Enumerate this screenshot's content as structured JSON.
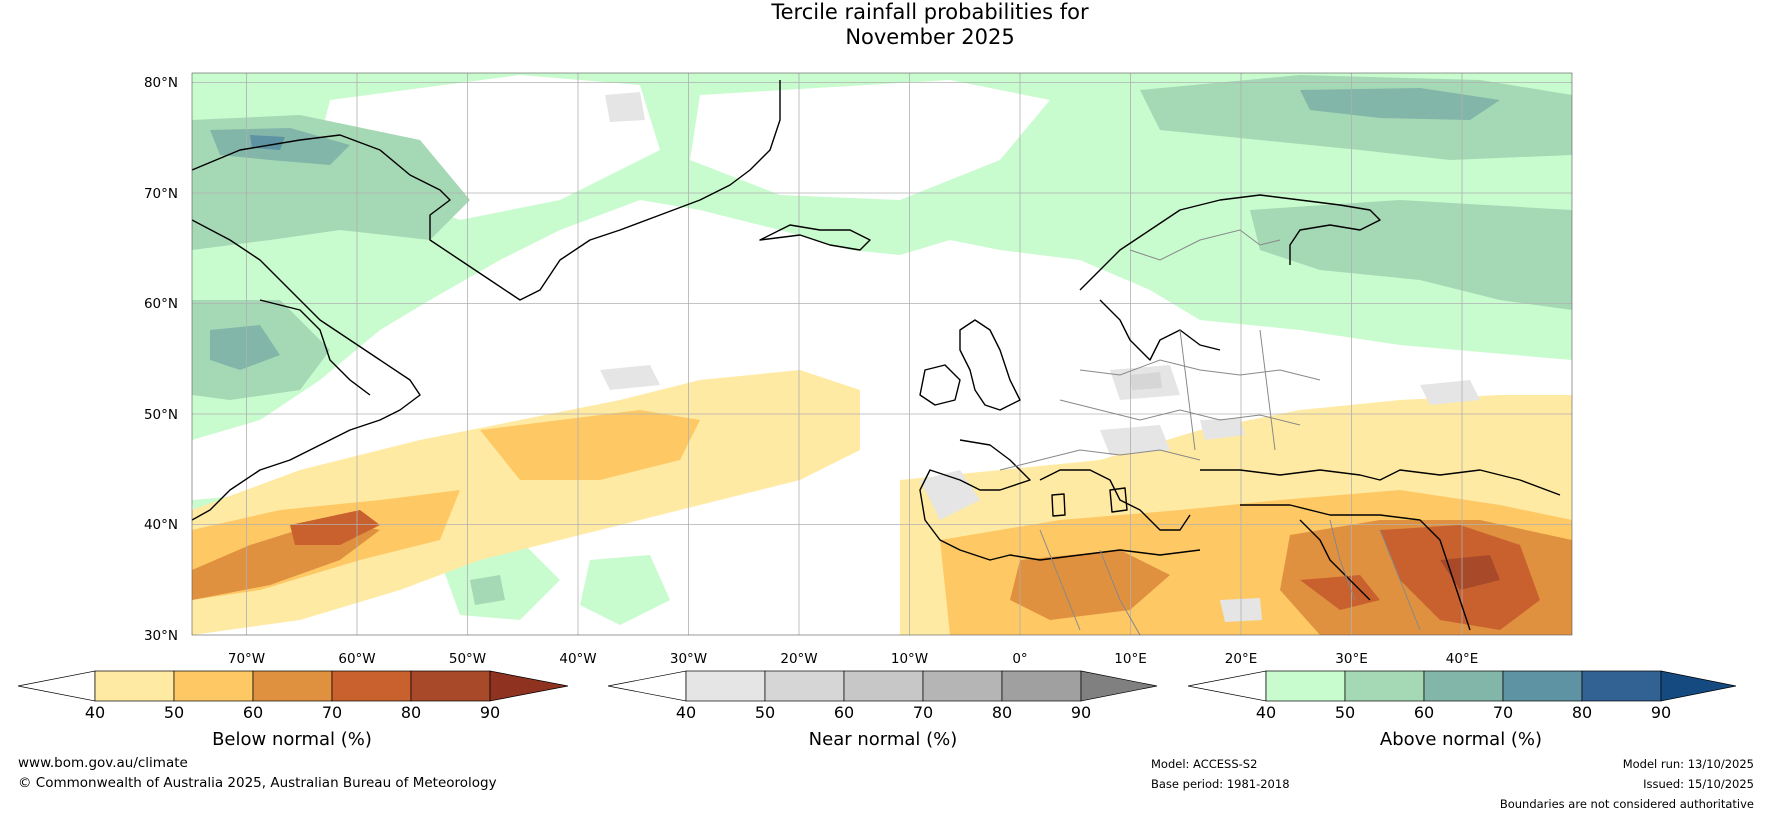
{
  "title": {
    "line1": "Tercile rainfall probabilities for",
    "line2": "November 2025"
  },
  "map": {
    "lat_labels": [
      "80°N",
      "70°N",
      "60°N",
      "50°N",
      "40°N",
      "30°N"
    ],
    "lon_labels": [
      "70°W",
      "60°W",
      "50°W",
      "40°W",
      "30°W",
      "20°W",
      "10°W",
      "0°",
      "10°E",
      "20°E",
      "30°E",
      "40°E"
    ],
    "land_outline_color": "#000000",
    "border_color": "#888888"
  },
  "colorbars": [
    {
      "title": "Below normal (%)",
      "ticks": [
        "40",
        "50",
        "60",
        "70",
        "80",
        "90"
      ],
      "colors": [
        "#ffffff",
        "#ffeaa3",
        "#fec965",
        "#e0913f",
        "#c9612f",
        "#a84a2a",
        "#8f3320"
      ]
    },
    {
      "title": "Near normal (%)",
      "ticks": [
        "40",
        "50",
        "60",
        "70",
        "80",
        "90"
      ],
      "colors": [
        "#ffffff",
        "#e5e5e5",
        "#d6d6d6",
        "#c7c7c7",
        "#b5b5b5",
        "#a0a0a0",
        "#808080"
      ]
    },
    {
      "title": "Above normal (%)",
      "ticks": [
        "40",
        "50",
        "60",
        "70",
        "80",
        "90"
      ],
      "colors": [
        "#ffffff",
        "#c8fbcd",
        "#a5d8b4",
        "#82b6a9",
        "#5d93a2",
        "#316293",
        "#144a80"
      ]
    }
  ],
  "footer": {
    "website": "www.bom.gov.au/climate",
    "copyright": "© Commonwealth of Australia 2025, Australian Bureau of Meteorology",
    "model": "Model: ACCESS-S2",
    "base_period": "Base period: 1981-2018",
    "model_run": "Model run: 13/10/2025",
    "issued": "Issued: 15/10/2025",
    "disclaimer": "Boundaries are not considered authoritative"
  }
}
